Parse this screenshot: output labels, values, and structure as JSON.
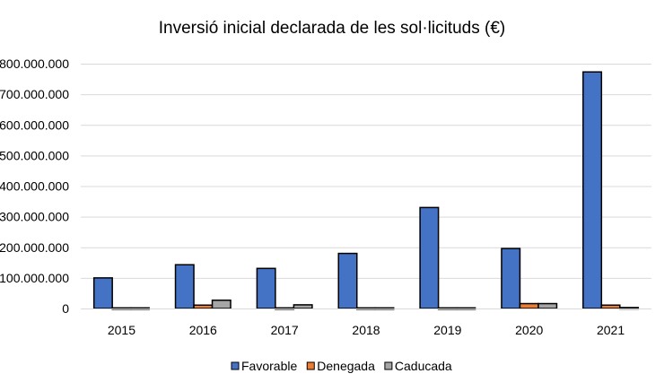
{
  "chart_data": {
    "type": "bar",
    "title": "Inversió inicial declarada de les sol·licituds (€)",
    "xlabel": "",
    "ylabel": "",
    "categories": [
      "2015",
      "2016",
      "2017",
      "2018",
      "2019",
      "2020",
      "2021"
    ],
    "series": [
      {
        "name": "Favorable",
        "color": "#4472C4",
        "values": [
          100000000,
          143000000,
          131000000,
          180000000,
          330000000,
          196000000,
          773000000
        ]
      },
      {
        "name": "Denegada",
        "color": "#ED7D31",
        "values": [
          2000000,
          11000000,
          2000000,
          2000000,
          2000000,
          16000000,
          11000000
        ]
      },
      {
        "name": "Caducada",
        "color": "#A5A5A5",
        "values": [
          2000000,
          27000000,
          12000000,
          2000000,
          2000000,
          16000000,
          3000000
        ]
      }
    ],
    "ylim": [
      0,
      800000000
    ],
    "yticks": [
      "0",
      "100.000.000",
      "200.000.000",
      "300.000.000",
      "400.000.000",
      "500.000.000",
      "600.000.000",
      "700.000.000",
      "800.000.000"
    ],
    "grid": true,
    "legend_position": "bottom"
  }
}
